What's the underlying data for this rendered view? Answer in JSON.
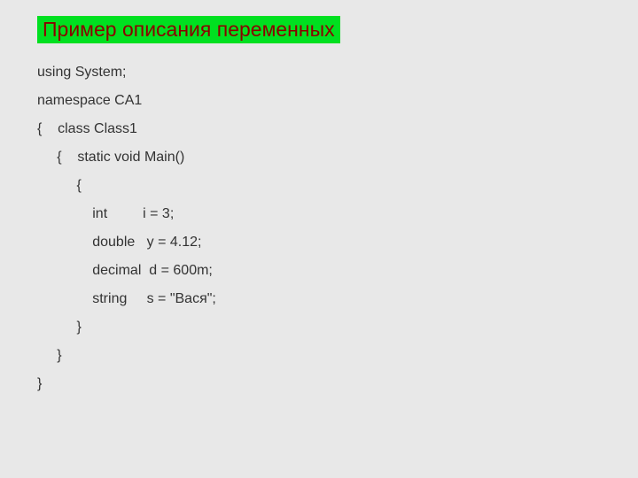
{
  "title": "Пример описания переменных",
  "code": {
    "line0": "using System;",
    "line1": "namespace CA1",
    "line2": "{    class Class1",
    "line3": "     {    static void Main()",
    "line4": "          {",
    "line5": "              int         i = 3;",
    "line6": "              double   y = 4.12;",
    "line7": "              decimal  d = 600m;",
    "line8": "              string     s = \"Вася\";",
    "line9": "",
    "line10": "          }",
    "line11": "     }",
    "line12": "}"
  },
  "colors": {
    "background": "#e8e8e8",
    "title_bg": "#00e020",
    "title_text": "#8b0000",
    "code_text": "#333333"
  },
  "typography": {
    "title_fontsize": 23,
    "code_fontsize": 16,
    "font_family": "Verdana"
  }
}
